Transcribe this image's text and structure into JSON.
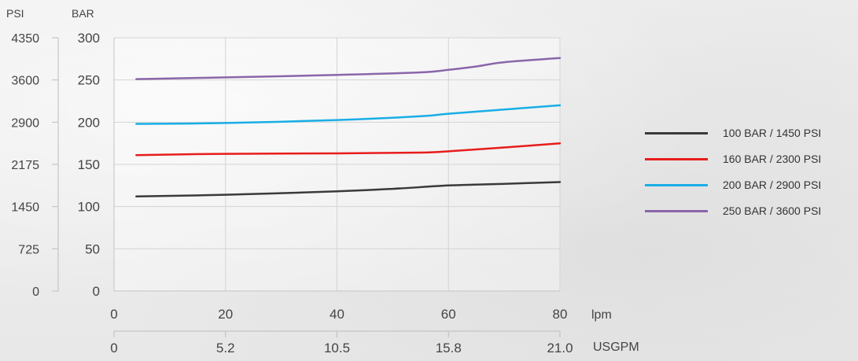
{
  "chart_data": {
    "type": "line",
    "grid": true,
    "legend_position": "right",
    "axes": {
      "psi_label": "PSI",
      "bar_label": "BAR",
      "lpm_label": "lpm",
      "usgpm_label": "USGPM",
      "psi_ticks": [
        "0",
        "725",
        "1450",
        "2175",
        "2900",
        "3600",
        "4350"
      ],
      "bar_ticks": [
        "0",
        "50",
        "100",
        "150",
        "200",
        "250",
        "300"
      ],
      "lpm_ticks": [
        "0",
        "20",
        "40",
        "60",
        "80"
      ],
      "usgpm_ticks": [
        "0",
        "5.2",
        "10.5",
        "15.8",
        "21.0"
      ],
      "xlim": [
        0,
        80
      ],
      "ylim": [
        0,
        300
      ]
    },
    "series": [
      {
        "name": "100 BAR / 1450 PSI",
        "color": "#3a3a3a",
        "x": [
          4,
          20,
          40,
          50,
          60,
          70,
          80
        ],
        "y": [
          112,
          114,
          118,
          121,
          125,
          127,
          129
        ]
      },
      {
        "name": "160 BAR / 2300 PSI",
        "color": "#e81c1c",
        "x": [
          4,
          20,
          40,
          55,
          60,
          70,
          80
        ],
        "y": [
          161,
          162.5,
          163,
          164,
          165.5,
          170,
          175
        ]
      },
      {
        "name": "200 BAR / 2900 PSI",
        "color": "#18aee6",
        "x": [
          4,
          20,
          40,
          55,
          60,
          70,
          80
        ],
        "y": [
          198,
          199,
          202.5,
          207,
          210,
          215,
          220
        ]
      },
      {
        "name": "250 BAR / 3600 PSI",
        "color": "#8a66a8",
        "x": [
          4,
          20,
          40,
          55,
          60,
          65,
          70,
          80
        ],
        "y": [
          251,
          253,
          256,
          259,
          262,
          266,
          271,
          276
        ]
      }
    ]
  }
}
